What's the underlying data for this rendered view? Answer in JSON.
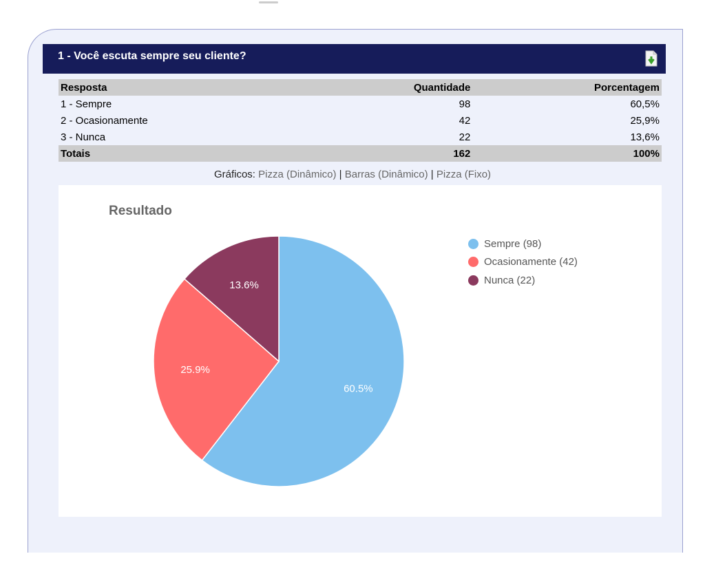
{
  "question": {
    "title": "1 - Você escuta sempre seu cliente?"
  },
  "table": {
    "headers": [
      "Resposta",
      "Quantidade",
      "Porcentagem"
    ],
    "rows": [
      [
        "1 - Sempre",
        "98",
        "60,5%"
      ],
      [
        "2 - Ocasionamente",
        "42",
        "25,9%"
      ],
      [
        "3 - Nunca",
        "22",
        "13,6%"
      ]
    ],
    "totals": [
      "Totais",
      "162",
      "100%"
    ]
  },
  "graficos": {
    "label": "Gráficos:",
    "links": [
      "Pizza (Dinâmico)",
      "Barras (Dinâmico)",
      "Pizza (Fixo)"
    ],
    "sep": "|"
  },
  "chart_data": {
    "type": "pie",
    "title": "Resultado",
    "categories": [
      "Sempre",
      "Ocasionamente",
      "Nunca"
    ],
    "values": [
      98,
      42,
      22
    ],
    "labels": [
      "60.5%",
      "25.9%",
      "13.6%"
    ],
    "legend": [
      "Sempre (98)",
      "Ocasionamente (42)",
      "Nunca (22)"
    ],
    "colors": [
      "#7dc0ee",
      "#ff6b6b",
      "#8b3a5e"
    ],
    "legend_position": "right"
  }
}
